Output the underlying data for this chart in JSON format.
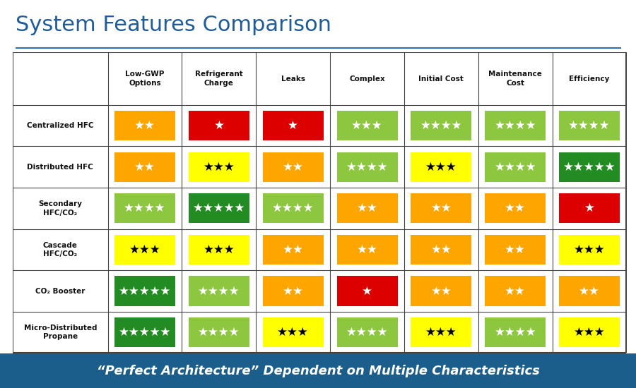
{
  "title": "System Features Comparison",
  "footer": "“Perfect Architecture” Dependent on Multiple Characteristics",
  "columns": [
    "Low-GWP\nOptions",
    "Refrigerant\nCharge",
    "Leaks",
    "Complex",
    "Initial Cost",
    "Maintenance\nCost",
    "Efficiency"
  ],
  "rows": [
    "Centralized HFC",
    "Distributed HFC",
    "Secondary\nHFC/CO₂",
    "Cascade\nHFC/CO₂",
    "CO₂ Booster",
    "Micro-Distributed\nPropane"
  ],
  "table": [
    [
      {
        "stars": 2,
        "color": "#FFA500",
        "star_color": "white"
      },
      {
        "stars": 1,
        "color": "#DD0000",
        "star_color": "white"
      },
      {
        "stars": 1,
        "color": "#DD0000",
        "star_color": "white"
      },
      {
        "stars": 3,
        "color": "#8DC63F",
        "star_color": "white"
      },
      {
        "stars": 4,
        "color": "#8DC63F",
        "star_color": "white"
      },
      {
        "stars": 4,
        "color": "#8DC63F",
        "star_color": "white"
      },
      {
        "stars": 4,
        "color": "#8DC63F",
        "star_color": "white"
      }
    ],
    [
      {
        "stars": 2,
        "color": "#FFA500",
        "star_color": "white"
      },
      {
        "stars": 3,
        "color": "#FFFF00",
        "star_color": "black"
      },
      {
        "stars": 2,
        "color": "#FFA500",
        "star_color": "white"
      },
      {
        "stars": 4,
        "color": "#8DC63F",
        "star_color": "white"
      },
      {
        "stars": 3,
        "color": "#FFFF00",
        "star_color": "black"
      },
      {
        "stars": 4,
        "color": "#8DC63F",
        "star_color": "white"
      },
      {
        "stars": 5,
        "color": "#228B22",
        "star_color": "white"
      }
    ],
    [
      {
        "stars": 4,
        "color": "#8DC63F",
        "star_color": "white"
      },
      {
        "stars": 5,
        "color": "#228B22",
        "star_color": "white"
      },
      {
        "stars": 4,
        "color": "#8DC63F",
        "star_color": "white"
      },
      {
        "stars": 2,
        "color": "#FFA500",
        "star_color": "white"
      },
      {
        "stars": 2,
        "color": "#FFA500",
        "star_color": "white"
      },
      {
        "stars": 2,
        "color": "#FFA500",
        "star_color": "white"
      },
      {
        "stars": 1,
        "color": "#DD0000",
        "star_color": "white"
      }
    ],
    [
      {
        "stars": 3,
        "color": "#FFFF00",
        "star_color": "black"
      },
      {
        "stars": 3,
        "color": "#FFFF00",
        "star_color": "black"
      },
      {
        "stars": 2,
        "color": "#FFA500",
        "star_color": "white"
      },
      {
        "stars": 2,
        "color": "#FFA500",
        "star_color": "white"
      },
      {
        "stars": 2,
        "color": "#FFA500",
        "star_color": "white"
      },
      {
        "stars": 2,
        "color": "#FFA500",
        "star_color": "white"
      },
      {
        "stars": 3,
        "color": "#FFFF00",
        "star_color": "black"
      }
    ],
    [
      {
        "stars": 5,
        "color": "#228B22",
        "star_color": "white"
      },
      {
        "stars": 4,
        "color": "#8DC63F",
        "star_color": "white"
      },
      {
        "stars": 2,
        "color": "#FFA500",
        "star_color": "white"
      },
      {
        "stars": 1,
        "color": "#DD0000",
        "star_color": "white"
      },
      {
        "stars": 2,
        "color": "#FFA500",
        "star_color": "white"
      },
      {
        "stars": 2,
        "color": "#FFA500",
        "star_color": "white"
      },
      {
        "stars": 2,
        "color": "#FFA500",
        "star_color": "white"
      }
    ],
    [
      {
        "stars": 5,
        "color": "#228B22",
        "star_color": "white"
      },
      {
        "stars": 4,
        "color": "#8DC63F",
        "star_color": "white"
      },
      {
        "stars": 3,
        "color": "#FFFF00",
        "star_color": "black"
      },
      {
        "stars": 4,
        "color": "#8DC63F",
        "star_color": "white"
      },
      {
        "stars": 3,
        "color": "#FFFF00",
        "star_color": "black"
      },
      {
        "stars": 4,
        "color": "#8DC63F",
        "star_color": "white"
      },
      {
        "stars": 3,
        "color": "#FFFF00",
        "star_color": "black"
      }
    ]
  ],
  "title_color": "#1F5C99",
  "grid_color": "#444444",
  "footer_bg": "#1B5E8C",
  "footer_text_color": "#FFFFFF",
  "title_fontsize": 22,
  "header_fontsize": 7.5,
  "row_label_fontsize": 7.5,
  "footer_fontsize": 13
}
